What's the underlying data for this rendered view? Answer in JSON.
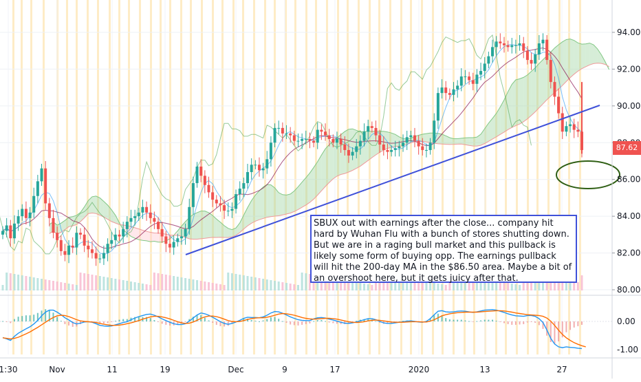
{
  "chart_data": [
    {
      "type": "candlestick",
      "ticker": "SBUX",
      "y_axis_ticks": [
        "94.00",
        "92.00",
        "90.00",
        "88.00",
        "86.00",
        "84.00",
        "82.00",
        "80.00"
      ],
      "ylim": [
        79.9,
        95.6
      ],
      "last_price_label": "87.62",
      "x_axis_labels": [
        "1:30",
        "Nov",
        "11",
        "19",
        "Dec",
        "9",
        "17",
        "2020",
        "13",
        "27"
      ],
      "approx_closes": [
        83.2,
        83.5,
        82.8,
        83.6,
        84.0,
        84.4,
        83.9,
        84.2,
        85.1,
        85.9,
        86.6,
        84.7,
        83.9,
        83.1,
        82.7,
        82.1,
        81.9,
        82.4,
        82.3,
        83.1,
        83.0,
        82.4,
        82.2,
        82.0,
        81.7,
        81.7,
        82.0,
        82.5,
        82.7,
        83.0,
        82.9,
        83.3,
        83.7,
        83.9,
        84.0,
        84.2,
        84.5,
        84.2,
        83.9,
        83.7,
        83.3,
        82.9,
        82.5,
        82.3,
        82.6,
        82.8,
        82.9,
        83.3,
        84.5,
        85.8,
        86.7,
        86.2,
        85.7,
        85.3,
        84.9,
        84.7,
        84.6,
        84.3,
        84.3,
        84.4,
        85.2,
        85.5,
        85.8,
        86.4,
        86.8,
        86.8,
        86.5,
        86.6,
        87.1,
        88.0,
        88.8,
        88.8,
        88.5,
        88.5,
        88.4,
        88.1,
        88.1,
        88.2,
        88.2,
        88.1,
        88.0,
        88.7,
        88.6,
        88.4,
        88.2,
        88.0,
        88.2,
        87.9,
        87.6,
        87.3,
        87.5,
        87.8,
        88.1,
        88.6,
        88.9,
        88.8,
        88.4,
        87.9,
        87.6,
        87.5,
        87.6,
        87.7,
        87.8,
        88.0,
        88.3,
        88.4,
        88.1,
        87.8,
        87.6,
        87.6,
        88.0,
        89.2,
        90.7,
        91.0,
        90.7,
        90.6,
        90.9,
        91.1,
        91.6,
        91.6,
        91.4,
        91.2,
        91.7,
        91.9,
        92.3,
        92.7,
        93.2,
        93.5,
        93.4,
        93.3,
        93.2,
        93.3,
        93.3,
        93.4,
        93.0,
        92.5,
        92.3,
        92.8,
        93.4,
        93.6,
        92.5,
        91.3,
        90.5,
        89.6,
        88.6,
        88.9,
        89.0,
        88.7,
        88.6,
        87.6
      ],
      "extra_marks": [
        "Ichimoku cloud",
        "Volume bars",
        "Trend line",
        "Highlighted vertical bands"
      ]
    },
    {
      "type": "line",
      "panel": "MACD",
      "y_axis_ticks": [
        "0.00",
        "-1.00"
      ],
      "ylim": [
        -1.15,
        0.55
      ],
      "series": [
        {
          "values": [
            -0.57,
            -0.62,
            -0.67,
            -0.53,
            -0.42,
            -0.34,
            -0.26,
            -0.19,
            -0.09,
            0.04,
            0.2,
            0.33,
            0.4,
            0.4,
            0.33,
            0.24,
            0.13,
            0.05,
            -0.04,
            -0.09,
            -0.06,
            -0.02,
            -0.01,
            -0.03,
            -0.08,
            -0.14,
            -0.16,
            -0.17,
            -0.16,
            -0.12,
            -0.08,
            -0.04,
            -0.01,
            0.06,
            0.12,
            0.17,
            0.21,
            0.25,
            0.26,
            0.22,
            0.16,
            0.09,
            0.03,
            -0.03,
            -0.08,
            -0.11,
            -0.11,
            -0.08,
            0.01,
            0.12,
            0.23,
            0.3,
            0.27,
            0.22,
            0.15,
            0.07,
            -0.01,
            -0.07,
            -0.1,
            -0.07,
            -0.02,
            0.04,
            0.11,
            0.15,
            0.14,
            0.14,
            0.13,
            0.16,
            0.22,
            0.3,
            0.35,
            0.34,
            0.29,
            0.23,
            0.16,
            0.11,
            0.06,
            0.04,
            0.03,
            0.03,
            0.09,
            0.13,
            0.14,
            0.12,
            0.08,
            0.05,
            0.01,
            -0.03,
            -0.06,
            -0.07,
            -0.05,
            -0.02,
            0.02,
            0.06,
            0.1,
            0.1,
            0.06,
            0.0,
            -0.05,
            -0.07,
            -0.07,
            -0.05,
            -0.03,
            -0.01,
            0.01,
            0.02,
            0.0,
            -0.02,
            -0.03,
            0.0,
            0.1,
            0.24,
            0.36,
            0.38,
            0.34,
            0.33,
            0.34,
            0.36,
            0.37,
            0.36,
            0.34,
            0.32,
            0.34,
            0.37,
            0.4,
            0.41,
            0.42,
            0.4,
            0.36,
            0.32,
            0.27,
            0.23,
            0.2,
            0.19,
            0.18,
            0.21,
            0.21,
            0.18,
            0.1,
            -0.04,
            -0.3,
            -0.6,
            -0.8,
            -0.9,
            -0.93,
            -0.9,
            -0.92,
            -0.93,
            -0.95,
            -0.96
          ]
        },
        {
          "values": [
            -0.58,
            -0.6,
            -0.62,
            -0.6,
            -0.56,
            -0.5,
            -0.44,
            -0.37,
            -0.29,
            -0.21,
            -0.12,
            -0.03,
            0.06,
            0.14,
            0.2,
            0.22,
            0.21,
            0.17,
            0.12,
            0.06,
            0.02,
            0.0,
            -0.01,
            -0.02,
            -0.04,
            -0.07,
            -0.1,
            -0.12,
            -0.14,
            -0.14,
            -0.13,
            -0.11,
            -0.08,
            -0.05,
            -0.01,
            0.03,
            0.08,
            0.12,
            0.16,
            0.18,
            0.18,
            0.16,
            0.13,
            0.09,
            0.04,
            -0.01,
            -0.05,
            -0.07,
            -0.06,
            -0.02,
            0.04,
            0.11,
            0.16,
            0.19,
            0.19,
            0.17,
            0.13,
            0.08,
            0.03,
            0.0,
            -0.01,
            0.0,
            0.03,
            0.07,
            0.1,
            0.12,
            0.13,
            0.13,
            0.15,
            0.18,
            0.22,
            0.26,
            0.28,
            0.27,
            0.25,
            0.22,
            0.18,
            0.14,
            0.11,
            0.09,
            0.08,
            0.09,
            0.1,
            0.11,
            0.11,
            0.1,
            0.08,
            0.05,
            0.02,
            -0.01,
            -0.03,
            -0.04,
            -0.03,
            -0.01,
            0.02,
            0.04,
            0.05,
            0.04,
            0.02,
            0.0,
            -0.02,
            -0.03,
            -0.03,
            -0.03,
            -0.02,
            -0.01,
            -0.01,
            -0.01,
            -0.02,
            -0.02,
            0.01,
            0.06,
            0.13,
            0.2,
            0.24,
            0.27,
            0.29,
            0.31,
            0.32,
            0.33,
            0.33,
            0.33,
            0.33,
            0.34,
            0.35,
            0.36,
            0.37,
            0.38,
            0.38,
            0.37,
            0.35,
            0.33,
            0.3,
            0.28,
            0.26,
            0.24,
            0.23,
            0.22,
            0.21,
            0.18,
            0.12,
            0.01,
            -0.14,
            -0.31,
            -0.46,
            -0.58,
            -0.67,
            -0.75,
            -0.81,
            -0.86,
            -0.9
          ]
        }
      ]
    }
  ],
  "annotations": {
    "note_text": "SBUX out with earnings after the close... company hit hard by Wuhan Flu with a bunch of stores shutting down. But we are in a raging bull market and this pullback is likely some form of buying opp. The earnings pullback will hit the 200-day MA in the $86.50 area. Maybe a bit of an overshoot here, but it gets juicy after that."
  },
  "colors": {
    "up": "#26a69a",
    "down": "#ef5350",
    "band": "#fde6b3",
    "trendline": "#3f51d9",
    "annotation_border": "#3f51d9",
    "circle": "#2e5e13",
    "macd_line": "#2196f3",
    "signal_line": "#ff6d00",
    "cloud_green": "#a5d6a7",
    "cloud_red": "#ffcdd2",
    "kijun": "#880e4f",
    "tenkan": "#2196f3",
    "chikou": "#43a047"
  }
}
